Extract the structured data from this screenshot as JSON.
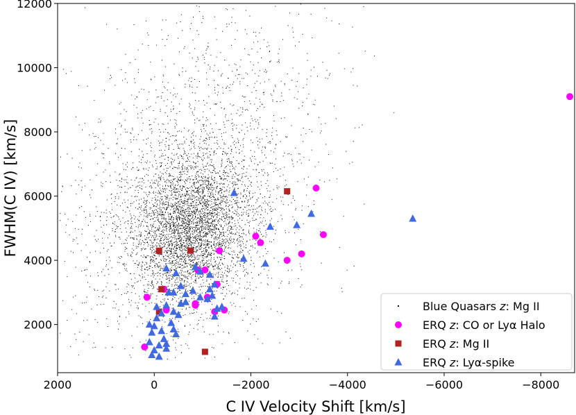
{
  "chart_data": {
    "type": "scatter",
    "title": "",
    "xlabel": "C IV Velocity Shift [km/s]",
    "ylabel": "FWHM(C IV) [km/s]",
    "xlim": [
      2000,
      -8700
    ],
    "ylim": [
      500,
      12000
    ],
    "x_ticks": [
      2000,
      0,
      -2000,
      -4000,
      -6000,
      -8000
    ],
    "x_tick_labels": [
      "2000",
      "0",
      "−2000",
      "−4000",
      "−6000",
      "−8000"
    ],
    "y_ticks": [
      2000,
      4000,
      6000,
      8000,
      10000,
      12000
    ],
    "y_tick_labels": [
      "2000",
      "4000",
      "6000",
      "8000",
      "10000",
      "12000"
    ],
    "grid": false,
    "legend_position": "bottom-right",
    "series": [
      {
        "name": "Blue Quasars z: Mg II",
        "legend_prefix": "Blue Quasars ",
        "legend_italic": "z",
        "legend_suffix": ": Mg II",
        "marker": "dot",
        "color": "#000000",
        "point_count_approx": 6000,
        "distribution": {
          "core_center": [
            -700,
            5000
          ],
          "core_spread": [
            600,
            1100
          ],
          "extended_center": [
            -600,
            6200
          ],
          "extended_spread": [
            1300,
            2700
          ]
        }
      },
      {
        "name": "ERQ z: CO or Lyα Halo",
        "legend_prefix": "ERQ ",
        "legend_italic": "z",
        "legend_suffix": ": CO or Lyα Halo",
        "marker": "circle",
        "color": "#ff00ff",
        "points": [
          [
            -8600,
            9100
          ],
          [
            -3350,
            6250
          ],
          [
            -3500,
            4800
          ],
          [
            -2100,
            4750
          ],
          [
            -2200,
            4550
          ],
          [
            -3050,
            4200
          ],
          [
            -2750,
            4000
          ],
          [
            -1350,
            4300
          ],
          [
            -1050,
            3700
          ],
          [
            -900,
            3700
          ],
          [
            -1300,
            3250
          ],
          [
            -200,
            3100
          ],
          [
            -250,
            2450
          ],
          [
            -850,
            2650
          ],
          [
            -1100,
            2850
          ],
          [
            -850,
            2600
          ],
          [
            -1450,
            2450
          ],
          [
            -1250,
            2400
          ],
          [
            150,
            2850
          ],
          [
            200,
            1300
          ]
        ]
      },
      {
        "name": "ERQ z: Mg II",
        "legend_prefix": "ERQ ",
        "legend_italic": "z",
        "legend_suffix": ": Mg II",
        "marker": "square",
        "color": "#b22222",
        "points": [
          [
            -2750,
            6150
          ],
          [
            -100,
            4300
          ],
          [
            -750,
            4300
          ],
          [
            -150,
            3100
          ],
          [
            -100,
            2400
          ],
          [
            -1050,
            1150
          ]
        ]
      },
      {
        "name": "ERQ z: Lyα-spike",
        "legend_prefix": "ERQ ",
        "legend_italic": "z",
        "legend_suffix": ": Lyα-spike",
        "marker": "triangle",
        "color": "#4169e1",
        "points": [
          [
            -5350,
            5300
          ],
          [
            -3250,
            5450
          ],
          [
            -2950,
            5100
          ],
          [
            -2400,
            5050
          ],
          [
            -1650,
            6100
          ],
          [
            -1850,
            4050
          ],
          [
            -2300,
            3900
          ],
          [
            -850,
            3800
          ],
          [
            -250,
            3750
          ],
          [
            -450,
            3600
          ],
          [
            -950,
            3650
          ],
          [
            -1150,
            3550
          ],
          [
            -550,
            3200
          ],
          [
            -800,
            3050
          ],
          [
            -1150,
            3100
          ],
          [
            -1250,
            3250
          ],
          [
            -300,
            3000
          ],
          [
            -400,
            3000
          ],
          [
            -1200,
            2900
          ],
          [
            -1100,
            2800
          ],
          [
            -650,
            2700
          ],
          [
            -950,
            2850
          ],
          [
            -1400,
            2550
          ],
          [
            -1300,
            2500
          ],
          [
            -50,
            2550
          ],
          [
            -250,
            2600
          ],
          [
            -400,
            2400
          ],
          [
            -500,
            2300
          ],
          [
            -50,
            2200
          ],
          [
            100,
            2000
          ],
          [
            -350,
            2050
          ],
          [
            -400,
            1850
          ],
          [
            -150,
            1800
          ],
          [
            -450,
            1700
          ],
          [
            -200,
            1550
          ],
          [
            50,
            1750
          ],
          [
            100,
            1450
          ],
          [
            -250,
            1250
          ],
          [
            0,
            1200
          ],
          [
            50,
            1050
          ],
          [
            -100,
            1000
          ],
          [
            -250,
            1400
          ],
          [
            -100,
            1350
          ],
          [
            -1250,
            2250
          ],
          [
            0,
            1950
          ],
          [
            -150,
            2350
          ],
          [
            -550,
            2650
          ],
          [
            -650,
            2950
          ]
        ]
      }
    ]
  }
}
